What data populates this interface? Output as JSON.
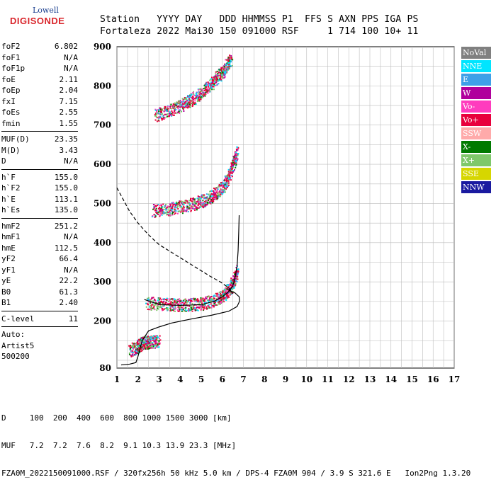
{
  "logo": {
    "line1": "Lowell",
    "line2": "DIGISONDE"
  },
  "header": {
    "line1": "Station   YYYY DAY   DDD HHMMSS P1  FFS S AXN PPS IGA PS",
    "line2": "Fortaleza 2022 Mai30 150 091000 RSF     1 714 100 10+ 11"
  },
  "params": {
    "g1": [
      {
        "label": "foF2",
        "value": "6.802"
      },
      {
        "label": "foF1",
        "value": "N/A"
      },
      {
        "label": "foF1p",
        "value": "N/A"
      },
      {
        "label": "foE",
        "value": "2.11"
      },
      {
        "label": "foEp",
        "value": "2.04"
      },
      {
        "label": "fxI",
        "value": "7.15"
      },
      {
        "label": "foEs",
        "value": "2.55"
      },
      {
        "label": "fmin",
        "value": "1.55"
      }
    ],
    "g2": [
      {
        "label": "MUF(D)",
        "value": "23.35"
      },
      {
        "label": "M(D)",
        "value": "3.43"
      },
      {
        "label": "D",
        "value": "N/A"
      }
    ],
    "g3": [
      {
        "label": "h`F",
        "value": "155.0"
      },
      {
        "label": "h`F2",
        "value": "155.0"
      },
      {
        "label": "h`E",
        "value": "113.1"
      },
      {
        "label": "h`Es",
        "value": "135.0"
      }
    ],
    "g4": [
      {
        "label": "hmF2",
        "value": "251.2"
      },
      {
        "label": "hmF1",
        "value": "N/A"
      },
      {
        "label": "hmE",
        "value": "112.5"
      },
      {
        "label": "yF2",
        "value": "66.4"
      },
      {
        "label": "yF1",
        "value": "N/A"
      },
      {
        "label": "yE",
        "value": "22.2"
      },
      {
        "label": "B0",
        "value": "61.3"
      },
      {
        "label": "B1",
        "value": "2.40"
      }
    ],
    "g5": [
      {
        "label": "C-level",
        "value": "11"
      }
    ],
    "auto": [
      "Auto:",
      "Artist5",
      "500200"
    ]
  },
  "legend": [
    {
      "label": "NoVal",
      "color": "#808080"
    },
    {
      "label": "NNE",
      "color": "#00e5ff"
    },
    {
      "label": "E",
      "color": "#3ea0e8"
    },
    {
      "label": "W",
      "color": "#b0009c"
    },
    {
      "label": "Vo-",
      "color": "#ff3cbe"
    },
    {
      "label": "Vo+",
      "color": "#e8003c"
    },
    {
      "label": "SSW",
      "color": "#ffaaaa"
    },
    {
      "label": "X-",
      "color": "#007a00"
    },
    {
      "label": "X+",
      "color": "#7ec86a"
    },
    {
      "label": "SSE",
      "color": "#d6d600"
    },
    {
      "label": "NNW",
      "color": "#1a1aa0"
    }
  ],
  "footer": {
    "line1": "D     100  200  400  600  800 1000 1500 3000 [km]",
    "line2": "MUF   7.2  7.2  7.6  8.2  9.1 10.3 13.9 23.3 [MHz]",
    "line3": "FZA0M_2022150091000.RSF / 320fx256h 50 kHz 5.0 km / DPS-4 FZA0M 904 / 3.9 S 321.6 E   Ion2Png 1.3.20"
  },
  "chart_data": {
    "type": "scatter",
    "xlim": [
      1,
      17
    ],
    "ylim": [
      80,
      900
    ],
    "xticks": [
      1,
      2,
      3,
      4,
      5,
      6,
      7,
      8,
      9,
      10,
      11,
      12,
      13,
      14,
      15,
      16,
      17
    ],
    "yticks": [
      80,
      200,
      300,
      400,
      500,
      600,
      700,
      800,
      900
    ],
    "grid": true,
    "lines": [
      {
        "name": "profile",
        "style": "solid",
        "color": "#000000",
        "x": [
          1.2,
          1.6,
          1.9,
          2.0,
          2.2,
          2.5,
          3.0,
          3.6,
          4.5,
          5.5,
          6.3,
          6.7,
          6.82,
          6.8,
          6.6,
          6.2
        ],
        "y": [
          88,
          90,
          94,
          110,
          150,
          175,
          185,
          195,
          205,
          215,
          225,
          237,
          251,
          262,
          272,
          282
        ]
      },
      {
        "name": "dashed",
        "style": "dashed",
        "color": "#000000",
        "x": [
          1.0,
          1.3,
          1.6,
          2.0,
          2.5,
          3.0,
          3.6,
          4.2,
          4.8,
          5.4,
          5.9,
          6.3,
          6.5
        ],
        "y": [
          540,
          510,
          480,
          450,
          420,
          395,
          375,
          355,
          335,
          315,
          300,
          285,
          270
        ]
      },
      {
        "name": "trace-o",
        "style": "solid",
        "color": "#000000",
        "x": [
          2.3,
          3.0,
          4.0,
          5.0,
          5.6,
          6.0,
          6.3,
          6.5,
          6.6,
          6.7,
          6.75,
          6.78,
          6.8
        ],
        "y": [
          255,
          242,
          240,
          242,
          250,
          262,
          275,
          290,
          310,
          340,
          380,
          430,
          470
        ]
      }
    ],
    "echo_traces": [
      {
        "mode": "F 1-hop",
        "x": [
          2.4,
          3.0,
          3.5,
          4.0,
          4.5,
          5.0,
          5.5,
          5.9,
          6.2,
          6.4,
          6.55,
          6.7
        ],
        "y": [
          250,
          248,
          246,
          245,
          246,
          248,
          255,
          265,
          278,
          292,
          310,
          335
        ]
      },
      {
        "mode": "F 2-hop",
        "x": [
          2.7,
          3.2,
          3.7,
          4.2,
          4.7,
          5.1,
          5.5,
          5.8,
          6.1,
          6.3,
          6.5,
          6.7
        ],
        "y": [
          486,
          488,
          492,
          498,
          505,
          512,
          522,
          535,
          552,
          575,
          605,
          640
        ]
      },
      {
        "mode": "F 3-hop",
        "x": [
          2.8,
          3.3,
          3.8,
          4.2,
          4.6,
          5.0,
          5.4,
          5.7,
          6.0,
          6.2,
          6.4
        ],
        "y": [
          728,
          737,
          748,
          760,
          772,
          787,
          805,
          823,
          840,
          858,
          870
        ]
      },
      {
        "mode": "Es",
        "x": [
          1.6,
          1.9,
          2.1,
          2.3,
          2.5,
          2.7,
          3.0
        ],
        "y": [
          130,
          135,
          145,
          150,
          150,
          152,
          153
        ]
      }
    ]
  }
}
